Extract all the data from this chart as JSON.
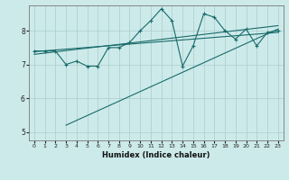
{
  "xlabel": "Humidex (Indice chaleur)",
  "bg_color": "#cdeaea",
  "line_color": "#1a6b6b",
  "grid_color": "#aacccc",
  "xlim": [
    -0.5,
    23.5
  ],
  "ylim": [
    4.75,
    8.75
  ],
  "xticks": [
    0,
    1,
    2,
    3,
    4,
    5,
    6,
    7,
    8,
    9,
    10,
    11,
    12,
    13,
    14,
    15,
    16,
    17,
    18,
    19,
    20,
    21,
    22,
    23
  ],
  "yticks": [
    5,
    6,
    7,
    8
  ],
  "series": {
    "main": {
      "x": [
        0,
        1,
        2,
        3,
        4,
        5,
        6,
        7,
        8,
        9,
        10,
        11,
        12,
        13,
        14,
        15,
        16,
        17,
        18,
        19,
        20,
        21,
        22,
        23
      ],
      "y": [
        7.4,
        7.4,
        7.4,
        7.0,
        7.1,
        6.95,
        6.95,
        7.5,
        7.5,
        7.65,
        8.0,
        8.3,
        8.65,
        8.3,
        6.95,
        7.55,
        8.5,
        8.4,
        8.0,
        7.75,
        8.05,
        7.55,
        7.95,
        8.0
      ]
    },
    "line1": {
      "x": [
        0,
        23
      ],
      "y": [
        7.38,
        7.95
      ]
    },
    "line2": {
      "x": [
        0,
        23
      ],
      "y": [
        7.3,
        8.15
      ]
    },
    "line3": {
      "x": [
        3,
        23
      ],
      "y": [
        5.2,
        8.05
      ]
    }
  }
}
